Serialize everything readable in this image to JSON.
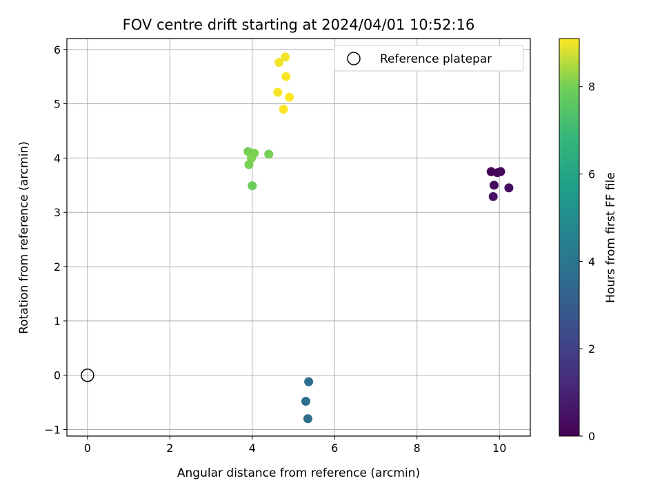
{
  "chart_data": {
    "type": "scatter",
    "title": "FOV centre drift starting at 2024/04/01 10:52:16",
    "xlabel": "Angular distance from reference (arcmin)",
    "ylabel": "Rotation from reference (arcmin)",
    "xlim": [
      -0.5,
      10.75
    ],
    "ylim": [
      -1.12,
      6.2
    ],
    "xticks": [
      0,
      2,
      4,
      6,
      8,
      10
    ],
    "yticks": [
      -1,
      0,
      1,
      2,
      3,
      4,
      5,
      6
    ],
    "grid": true,
    "legend": {
      "position": "upper-right",
      "entries": [
        "Reference platepar"
      ]
    },
    "reference": {
      "x": 0,
      "y": 0,
      "marker": "open-circle",
      "color": "#000000"
    },
    "colorbar": {
      "label": "Hours from first FF file",
      "range": [
        0,
        9.1
      ],
      "ticks": [
        0,
        2,
        4,
        6,
        8
      ],
      "colormap": "viridis"
    },
    "points": [
      {
        "x": 9.8,
        "y": 3.75,
        "c": 0.0
      },
      {
        "x": 9.95,
        "y": 3.73,
        "c": 0.1
      },
      {
        "x": 10.03,
        "y": 3.75,
        "c": 0.2
      },
      {
        "x": 9.87,
        "y": 3.5,
        "c": 0.3
      },
      {
        "x": 10.23,
        "y": 3.45,
        "c": 0.4
      },
      {
        "x": 9.85,
        "y": 3.29,
        "c": 0.5
      },
      {
        "x": 5.37,
        "y": -0.12,
        "c": 3.6
      },
      {
        "x": 5.3,
        "y": -0.48,
        "c": 3.65
      },
      {
        "x": 5.35,
        "y": -0.8,
        "c": 3.7
      },
      {
        "x": 3.9,
        "y": 4.12,
        "c": 8.0
      },
      {
        "x": 4.05,
        "y": 4.09,
        "c": 8.05
      },
      {
        "x": 3.98,
        "y": 4.0,
        "c": 8.1
      },
      {
        "x": 4.4,
        "y": 4.07,
        "c": 8.0
      },
      {
        "x": 3.92,
        "y": 3.88,
        "c": 8.05
      },
      {
        "x": 4.0,
        "y": 3.49,
        "c": 7.9
      },
      {
        "x": 4.8,
        "y": 5.86,
        "c": 9.0
      },
      {
        "x": 4.65,
        "y": 5.76,
        "c": 9.0
      },
      {
        "x": 4.82,
        "y": 5.5,
        "c": 9.05
      },
      {
        "x": 4.62,
        "y": 5.21,
        "c": 9.05
      },
      {
        "x": 4.9,
        "y": 5.12,
        "c": 9.1
      },
      {
        "x": 4.76,
        "y": 4.9,
        "c": 9.1
      }
    ]
  }
}
